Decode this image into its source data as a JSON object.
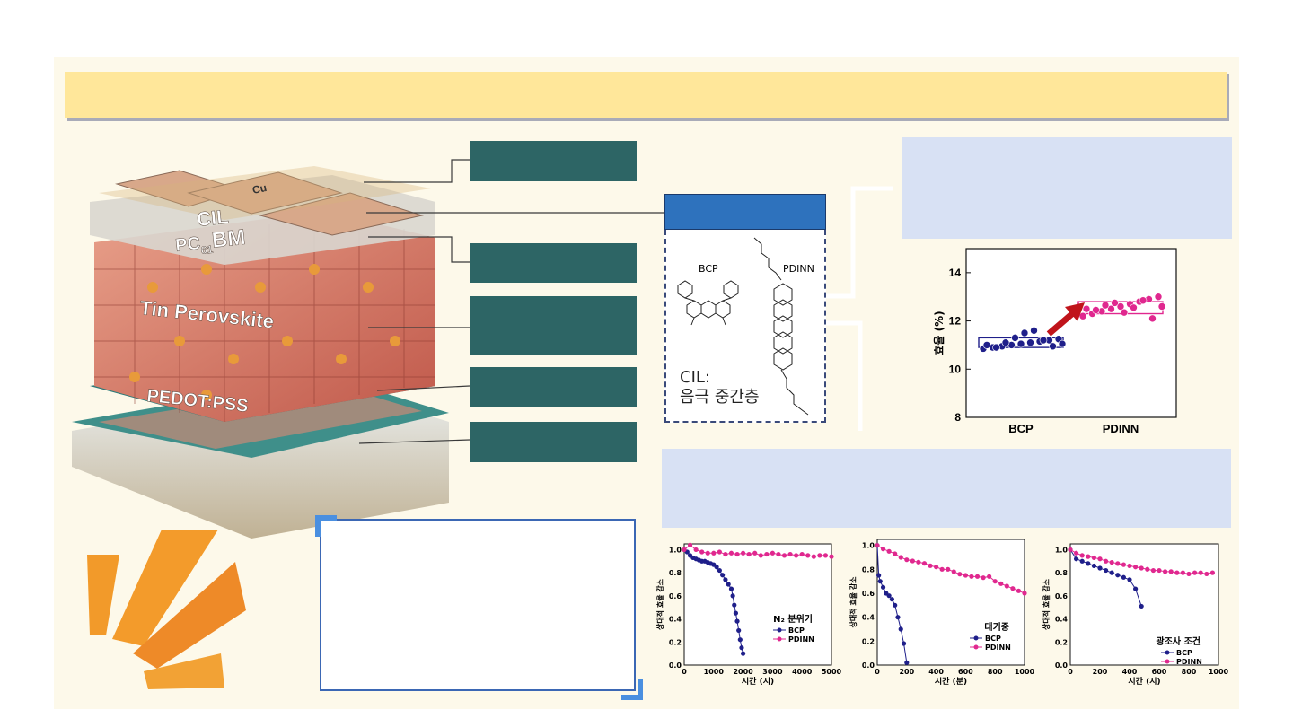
{
  "device_labels": {
    "cu": "Cu",
    "cil": "CIL",
    "pcbm_main": "PC",
    "pcbm_sub": "61",
    "pcbm_tail": "BM",
    "perovskite": "Tin Perovskite",
    "pedot": "PEDOT:PSS"
  },
  "cil_panel": {
    "molecule1": "BCP",
    "molecule2": "PDINN",
    "caption_line1": "CIL:",
    "caption_line2": "음극 중간층"
  },
  "colors": {
    "layer_box": "#2d6565",
    "cil_header": "#2e72bd",
    "title_bar": "#ffe79a",
    "bcp": "#1f1f8a",
    "pdinn": "#e0288f"
  },
  "efficiency_chart": {
    "ylabel": "효율 (%)",
    "yticks": [
      "8",
      "10",
      "12",
      "14"
    ],
    "categories": [
      "BCP",
      "PDINN"
    ]
  },
  "stability_charts": [
    {
      "panel_label": "N₂ 분위기",
      "xlabel": "시간 (시)",
      "ylabel": "상대적 효율 감소",
      "xticks": [
        "0",
        "1000",
        "2000",
        "3000",
        "4000",
        "5000"
      ],
      "yticks": [
        "0.0",
        "0.2",
        "0.4",
        "0.6",
        "0.8",
        "1.0"
      ],
      "legend": [
        "BCP",
        "PDINN"
      ]
    },
    {
      "panel_label": "대기중",
      "xlabel": "시간 (분)",
      "ylabel": "상대적 효율 감소",
      "xticks": [
        "0",
        "200",
        "400",
        "600",
        "800",
        "1000"
      ],
      "yticks": [
        "0.0",
        "0.2",
        "0.4",
        "0.6",
        "0.8",
        "1.0"
      ],
      "legend": [
        "BCP",
        "PDINN"
      ]
    },
    {
      "panel_label": "광조사 조건",
      "xlabel": "시간 (시)",
      "ylabel": "상대적 효율 감소",
      "xticks": [
        "0",
        "200",
        "400",
        "600",
        "800",
        "1000"
      ],
      "yticks": [
        "0.0",
        "0.2",
        "0.4",
        "0.6",
        "0.8",
        "1.0"
      ],
      "legend": [
        "BCP",
        "PDINN"
      ]
    }
  ],
  "chart_data": [
    {
      "type": "scatter",
      "ylabel": "효율 (%)",
      "categories": [
        "BCP",
        "PDINN"
      ],
      "ylim": [
        8,
        15
      ],
      "series": [
        {
          "name": "BCP",
          "box": [
            10.9,
            11.3
          ],
          "values": [
            10.85,
            10.9,
            10.95,
            11.0,
            11.05,
            11.1,
            11.15,
            11.2,
            11.25,
            11.0,
            10.9,
            11.1,
            11.3,
            11.5,
            11.6,
            11.2,
            10.95,
            11.05
          ]
        },
        {
          "name": "PDINN",
          "box": [
            12.3,
            12.8
          ],
          "values": [
            12.2,
            12.3,
            12.4,
            12.5,
            12.6,
            12.7,
            12.8,
            12.9,
            13.0,
            12.5,
            12.45,
            12.65,
            12.75,
            12.35,
            12.55,
            12.85,
            12.1,
            12.6
          ]
        }
      ]
    },
    {
      "type": "line",
      "xlabel": "시간 (시)",
      "ylabel": "상대적 효율 감소",
      "xlim": [
        0,
        5000
      ],
      "ylim": [
        0,
        1.05
      ],
      "series": [
        {
          "name": "BCP",
          "x": [
            0,
            100,
            200,
            300,
            400,
            500,
            600,
            700,
            800,
            900,
            1000,
            1100,
            1200,
            1300,
            1400,
            1500,
            1600,
            1650,
            1700,
            1750,
            1800,
            1850,
            1900,
            1950,
            2000
          ],
          "y": [
            1.0,
            0.98,
            0.95,
            0.93,
            0.92,
            0.91,
            0.9,
            0.9,
            0.89,
            0.88,
            0.87,
            0.85,
            0.82,
            0.78,
            0.74,
            0.7,
            0.66,
            0.6,
            0.52,
            0.45,
            0.38,
            0.3,
            0.22,
            0.15,
            0.1
          ]
        },
        {
          "name": "PDINN",
          "x": [
            0,
            200,
            400,
            600,
            800,
            1000,
            1200,
            1400,
            1600,
            1800,
            2000,
            2200,
            2400,
            2600,
            2800,
            3000,
            3200,
            3400,
            3600,
            3800,
            4000,
            4200,
            4400,
            4600,
            4800,
            5000
          ],
          "y": [
            1.0,
            1.04,
            1.0,
            0.98,
            0.97,
            0.97,
            0.98,
            0.96,
            0.97,
            0.96,
            0.97,
            0.96,
            0.97,
            0.95,
            0.96,
            0.97,
            0.96,
            0.95,
            0.96,
            0.95,
            0.96,
            0.95,
            0.94,
            0.95,
            0.95,
            0.94
          ]
        }
      ]
    },
    {
      "type": "line",
      "xlabel": "시간 (분)",
      "ylabel": "상대적 효율 감소",
      "xlim": [
        0,
        1000
      ],
      "ylim": [
        0,
        1.05
      ],
      "series": [
        {
          "name": "BCP",
          "x": [
            0,
            10,
            20,
            40,
            60,
            80,
            100,
            120,
            140,
            160,
            180,
            200
          ],
          "y": [
            1.0,
            0.75,
            0.7,
            0.65,
            0.6,
            0.58,
            0.55,
            0.5,
            0.4,
            0.3,
            0.18,
            0.02
          ]
        },
        {
          "name": "PDINN",
          "x": [
            0,
            40,
            80,
            120,
            160,
            200,
            240,
            280,
            320,
            360,
            400,
            440,
            480,
            520,
            560,
            600,
            640,
            680,
            720,
            760,
            800,
            840,
            880,
            920,
            960,
            1000
          ],
          "y": [
            1.0,
            0.97,
            0.95,
            0.93,
            0.9,
            0.88,
            0.87,
            0.86,
            0.85,
            0.83,
            0.82,
            0.8,
            0.8,
            0.78,
            0.76,
            0.75,
            0.74,
            0.74,
            0.73,
            0.74,
            0.7,
            0.68,
            0.66,
            0.64,
            0.62,
            0.6
          ]
        }
      ]
    },
    {
      "type": "line",
      "xlabel": "시간 (시)",
      "ylabel": "상대적 효율 감소",
      "xlim": [
        0,
        1000
      ],
      "ylim": [
        0,
        1.05
      ],
      "series": [
        {
          "name": "BCP",
          "x": [
            0,
            40,
            80,
            120,
            160,
            200,
            240,
            280,
            320,
            360,
            400,
            440,
            480
          ],
          "y": [
            1.0,
            0.92,
            0.9,
            0.88,
            0.86,
            0.84,
            0.82,
            0.8,
            0.78,
            0.76,
            0.74,
            0.66,
            0.51
          ]
        },
        {
          "name": "PDINN",
          "x": [
            0,
            40,
            80,
            120,
            160,
            200,
            240,
            280,
            320,
            360,
            400,
            440,
            480,
            520,
            560,
            600,
            640,
            680,
            720,
            760,
            800,
            840,
            880,
            920,
            960
          ],
          "y": [
            1.0,
            0.97,
            0.95,
            0.94,
            0.93,
            0.92,
            0.9,
            0.89,
            0.88,
            0.87,
            0.86,
            0.85,
            0.84,
            0.83,
            0.82,
            0.82,
            0.81,
            0.81,
            0.8,
            0.8,
            0.79,
            0.8,
            0.8,
            0.79,
            0.8
          ]
        }
      ]
    }
  ]
}
